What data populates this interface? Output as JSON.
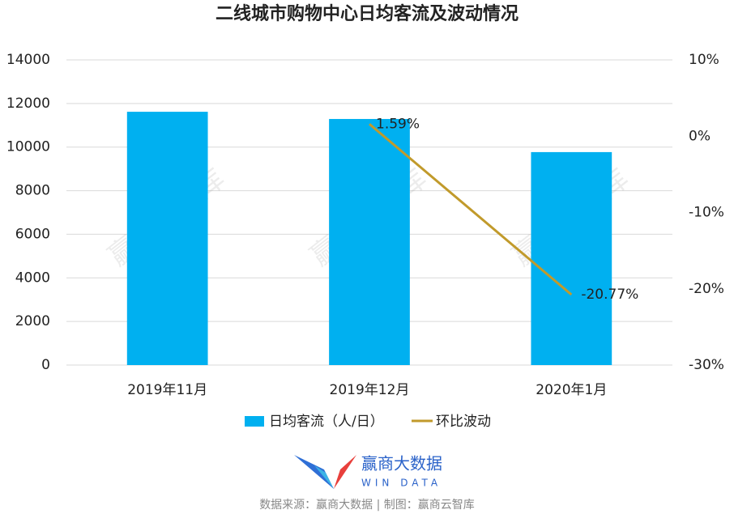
{
  "chart_data": {
    "type": "bar_line",
    "title": "二线城市购物中心日均客流及波动情况",
    "categories": [
      "2019年11月",
      "2019年12月",
      "2020年1月"
    ],
    "series": [
      {
        "name": "日均客流（人/日）",
        "color": "#00b0f0",
        "values": [
          11620,
          11290,
          9770
        ]
      },
      {
        "name": "环比波动",
        "color": "#c19a2b",
        "axis": "y2",
        "values": [
          null,
          1.59,
          -20.77
        ],
        "value_labels": [
          null,
          "1.59%",
          "-20.77%"
        ]
      }
    ],
    "ylim": [
      0,
      14000
    ],
    "yticks": [
      0,
      2000,
      4000,
      6000,
      8000,
      10000,
      12000,
      14000
    ],
    "y2lim": [
      -30,
      10
    ],
    "y2ticks": [
      {
        "value": -30,
        "label": "-30%"
      },
      {
        "value": -20,
        "label": "-20%"
      },
      {
        "value": -10,
        "label": "-10%"
      },
      {
        "value": 0,
        "label": "0%"
      },
      {
        "value": 10,
        "label": "10%"
      }
    ],
    "grid": true,
    "legend": "bottom",
    "watermark": "赢商云智库",
    "logo": {
      "name": "赢商大数据",
      "sub": "WIN DATA"
    },
    "source": "数据来源：赢商大数据 | 制图：赢商云智库"
  }
}
